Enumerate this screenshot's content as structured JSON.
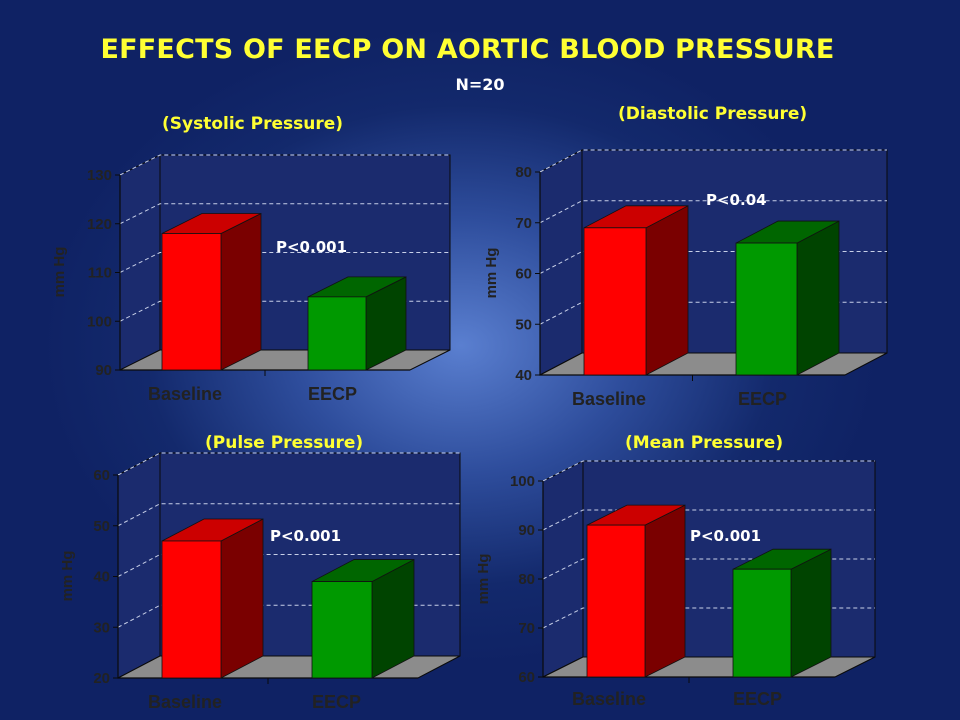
{
  "slide": {
    "title": "EFFECTS OF EECP ON AORTIC  BLOOD PRESSURE",
    "subtitle": "N=20"
  },
  "colors": {
    "baseline_front": "#ff0000",
    "baseline_side": "#7a0000",
    "eecp_front": "#009900",
    "eecp_side": "#004400",
    "wall": "#1b2b6e",
    "floor": "#8c8c8c"
  },
  "chart_data": [
    {
      "type": "bar",
      "title": "(Systolic Pressure)",
      "categories": [
        "Baseline",
        "EECP"
      ],
      "values": [
        118,
        105
      ],
      "ylabel": "mm Hg",
      "ylim": [
        90,
        130
      ],
      "yticks": [
        "90",
        "100",
        "110",
        "120",
        "130"
      ],
      "annotation": "P<0.001",
      "grid": true
    },
    {
      "type": "bar",
      "title": "(Diastolic Pressure)",
      "categories": [
        "Baseline",
        "EECP"
      ],
      "values": [
        69,
        66
      ],
      "ylabel": "mm Hg",
      "ylim": [
        40,
        80
      ],
      "yticks": [
        "40",
        "50",
        "60",
        "70",
        "80"
      ],
      "annotation": "P<0.04",
      "grid": true
    },
    {
      "type": "bar",
      "title": "(Pulse Pressure)",
      "categories": [
        "Baseline",
        "EECP"
      ],
      "values": [
        47,
        39
      ],
      "ylabel": "mm Hg",
      "ylim": [
        20,
        60
      ],
      "yticks": [
        "20",
        "30",
        "40",
        "50",
        "60"
      ],
      "annotation": "P<0.001",
      "grid": true
    },
    {
      "type": "bar",
      "title": "(Mean Pressure)",
      "categories": [
        "Baseline",
        "EECP"
      ],
      "values": [
        91,
        82
      ],
      "ylabel": "mm Hg",
      "ylim": [
        60,
        100
      ],
      "yticks": [
        "60",
        "70",
        "80",
        "90",
        "100"
      ],
      "annotation": "P<0.001",
      "grid": true
    }
  ]
}
